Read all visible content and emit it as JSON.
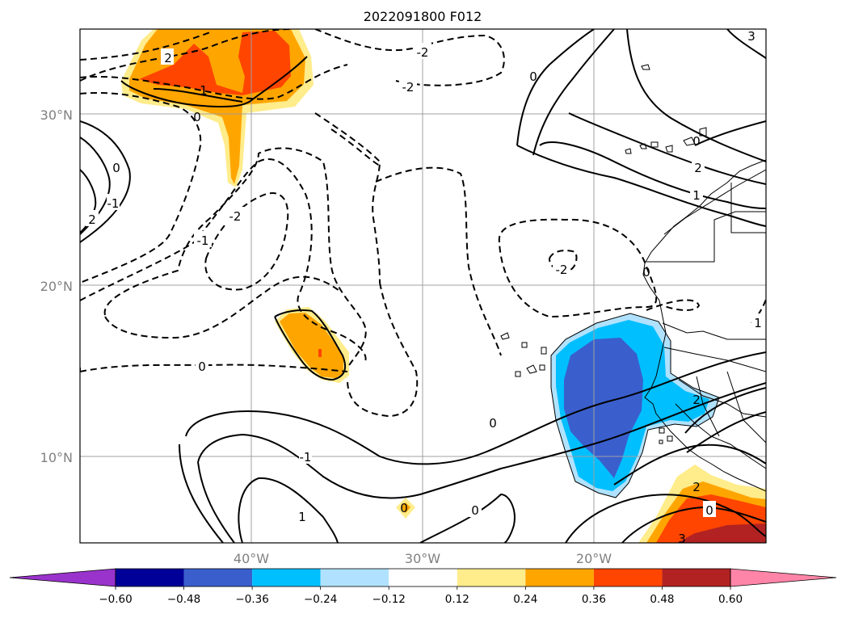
{
  "title": "2022091800 F012",
  "map": {
    "lat_labels": [
      "30°N",
      "20°N",
      "10°N"
    ],
    "lon_labels": [
      "40°W",
      "30°W",
      "20°W"
    ],
    "lat_values": [
      30,
      20,
      10
    ],
    "lon_values": [
      -40,
      -30,
      -20
    ],
    "extent": {
      "lon_min": -50,
      "lon_max": -10,
      "lat_min": 5,
      "lat_max": 35
    },
    "grid": true,
    "contour_labels": [
      "2",
      "-2",
      "-2",
      "1",
      "0",
      "0",
      "-1",
      "2",
      "-2",
      "-1",
      "0",
      "0",
      "0",
      "1",
      "2",
      "3",
      "0",
      "-2",
      "2",
      "-1",
      "0",
      "1",
      "0",
      "0",
      "0",
      "3",
      "1",
      "2"
    ]
  },
  "colorbar": {
    "colors": [
      "#9933cc",
      "#000099",
      "#3a5fcd",
      "#00bfff",
      "#b0e2ff",
      "#ffffff",
      "#ffec8b",
      "#ffa500",
      "#ff4500",
      "#b22222",
      "#ff85a8"
    ],
    "tick_labels": [
      "−0.60",
      "−0.48",
      "−0.36",
      "−0.24",
      "−0.12",
      "0.12",
      "0.24",
      "0.36",
      "0.48",
      "0.60"
    ],
    "levels": [
      -0.6,
      -0.48,
      -0.36,
      -0.24,
      -0.12,
      0.12,
      0.24,
      0.36,
      0.48,
      0.6
    ]
  },
  "colors": {
    "light_yellow": "#ffec8b",
    "orange": "#ffa500",
    "red_orange": "#ff4500",
    "dark_red": "#b22222",
    "deep_sky_blue": "#00bfff",
    "light_blue": "#b0e2ff",
    "royal_blue": "#3a5fcd",
    "grid": "#a0a0a0"
  }
}
